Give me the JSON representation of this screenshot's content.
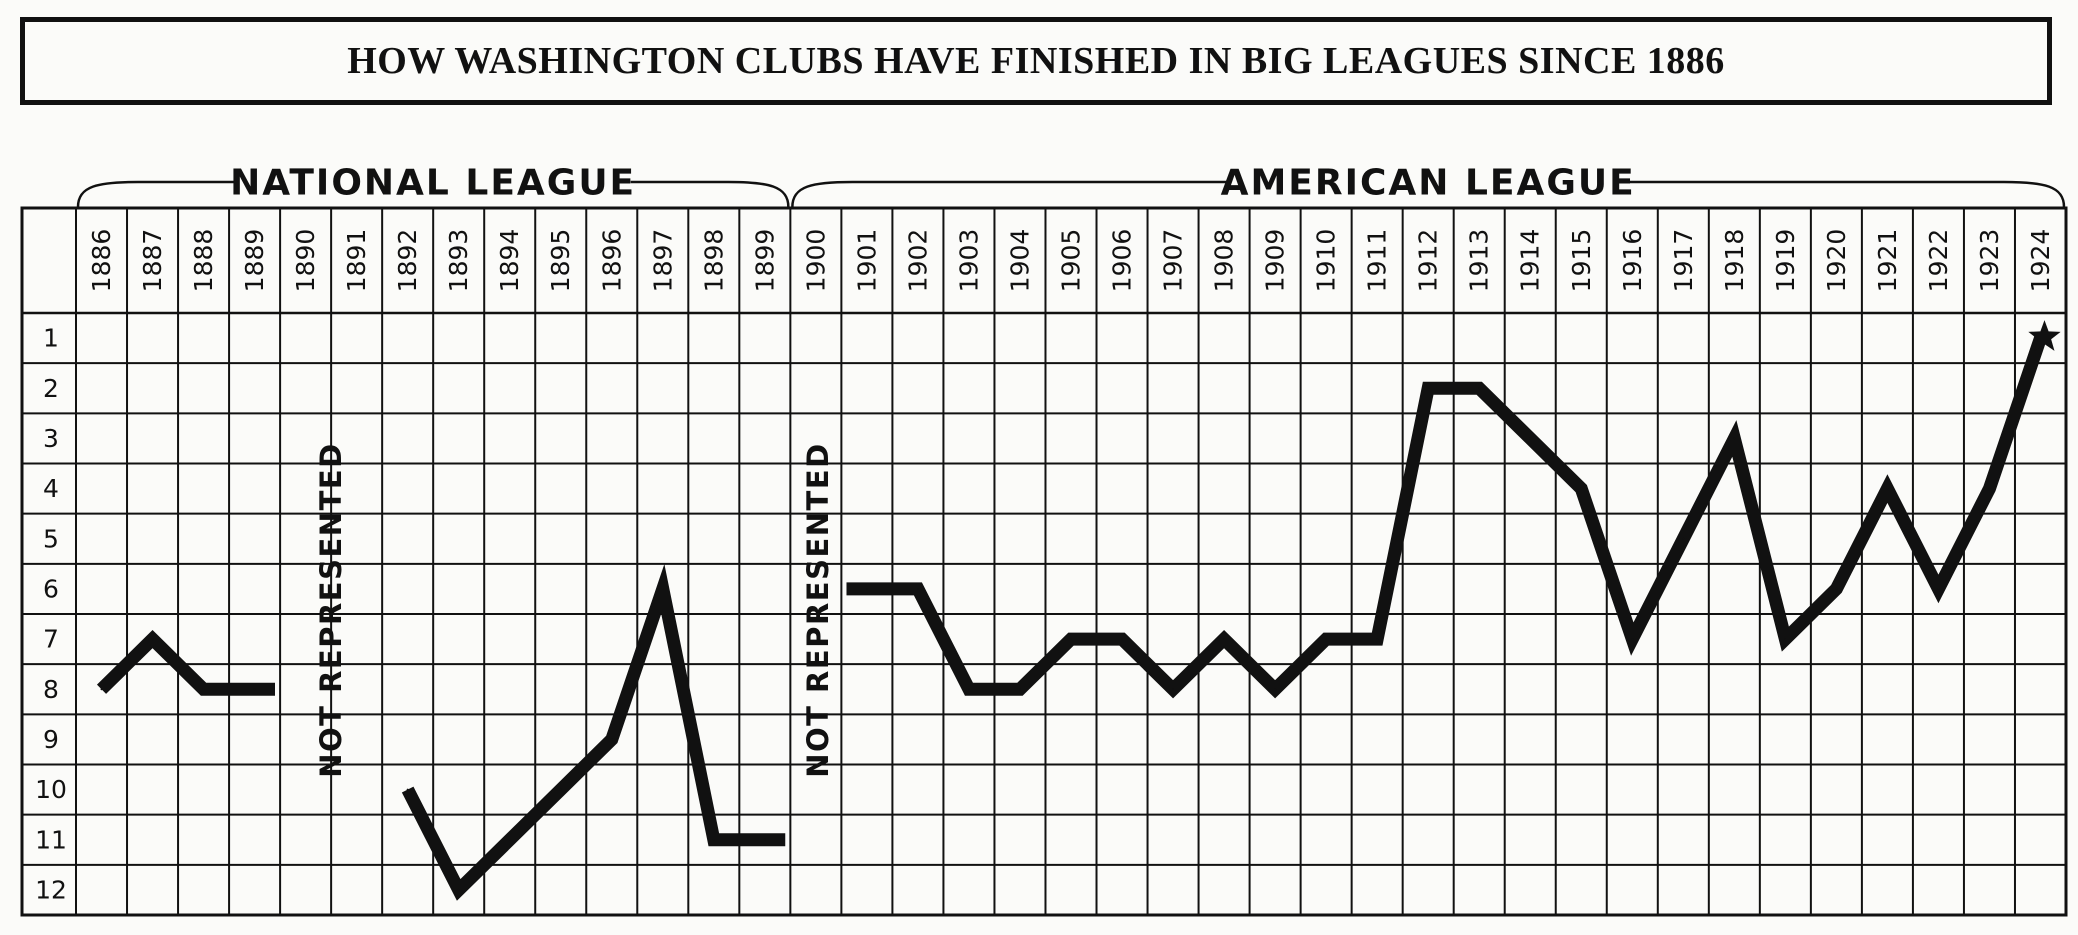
{
  "chart_data": {
    "type": "line",
    "title": "HOW WASHINGTON CLUBS HAVE FINISHED IN BIG LEAGUES SINCE 1886",
    "years": [
      "1886",
      "1887",
      "1888",
      "1889",
      "1890",
      "1891",
      "1892",
      "1893",
      "1894",
      "1895",
      "1896",
      "1897",
      "1898",
      "1899",
      "1900",
      "1901",
      "1902",
      "1903",
      "1904",
      "1905",
      "1906",
      "1907",
      "1908",
      "1909",
      "1910",
      "1911",
      "1912",
      "1913",
      "1914",
      "1915",
      "1916",
      "1917",
      "1918",
      "1919",
      "1920",
      "1921",
      "1922",
      "1923",
      "1924"
    ],
    "ranks": [
      "1",
      "2",
      "3",
      "4",
      "5",
      "6",
      "7",
      "8",
      "9",
      "10",
      "11",
      "12"
    ],
    "ylim": [
      1,
      12
    ],
    "y_inverted": true,
    "grid": true,
    "leagues": [
      {
        "label": "NATIONAL LEAGUE",
        "from": "1886",
        "to": "1899"
      },
      {
        "label": "AMERICAN LEAGUE",
        "from": "1900",
        "to": "1924"
      }
    ],
    "gaps": [
      {
        "label": "NOT REPRESENTED",
        "years": [
          "1890",
          "1891"
        ]
      },
      {
        "label": "NOT REPRESENTED",
        "years": [
          "1900"
        ]
      }
    ],
    "series": [
      {
        "segment": "national-1886-1889",
        "points": [
          {
            "x": "1886",
            "y": 8
          },
          {
            "x": "1887",
            "y": 7
          },
          {
            "x": "1888",
            "y": 8
          },
          {
            "x": "1889",
            "y": 8
          }
        ]
      },
      {
        "segment": "national-1892-1899",
        "points": [
          {
            "x": "1892",
            "y": 10
          },
          {
            "x": "1893",
            "y": 12
          },
          {
            "x": "1894",
            "y": 11
          },
          {
            "x": "1895",
            "y": 10
          },
          {
            "x": "1896",
            "y": 9
          },
          {
            "x": "1897",
            "y": 6
          },
          {
            "x": "1898",
            "y": 11
          },
          {
            "x": "1899",
            "y": 11
          }
        ]
      },
      {
        "segment": "american-1901-1924",
        "points": [
          {
            "x": "1901",
            "y": 6
          },
          {
            "x": "1902",
            "y": 6
          },
          {
            "x": "1903",
            "y": 8
          },
          {
            "x": "1904",
            "y": 8
          },
          {
            "x": "1905",
            "y": 7
          },
          {
            "x": "1906",
            "y": 7
          },
          {
            "x": "1907",
            "y": 8
          },
          {
            "x": "1908",
            "y": 7
          },
          {
            "x": "1909",
            "y": 8
          },
          {
            "x": "1910",
            "y": 7
          },
          {
            "x": "1911",
            "y": 7
          },
          {
            "x": "1912",
            "y": 2
          },
          {
            "x": "1913",
            "y": 2
          },
          {
            "x": "1914",
            "y": 3
          },
          {
            "x": "1915",
            "y": 4
          },
          {
            "x": "1916",
            "y": 7
          },
          {
            "x": "1917",
            "y": 5
          },
          {
            "x": "1918",
            "y": 3
          },
          {
            "x": "1919",
            "y": 7
          },
          {
            "x": "1920",
            "y": 6
          },
          {
            "x": "1921",
            "y": 4
          },
          {
            "x": "1922",
            "y": 6
          },
          {
            "x": "1923",
            "y": 4
          },
          {
            "x": "1924",
            "y": 1
          }
        ]
      }
    ],
    "marker": {
      "x": "1924",
      "y": 1,
      "symbol": "star"
    }
  },
  "colors": {
    "ink": "#111111",
    "paper": "#fbfbf9"
  }
}
